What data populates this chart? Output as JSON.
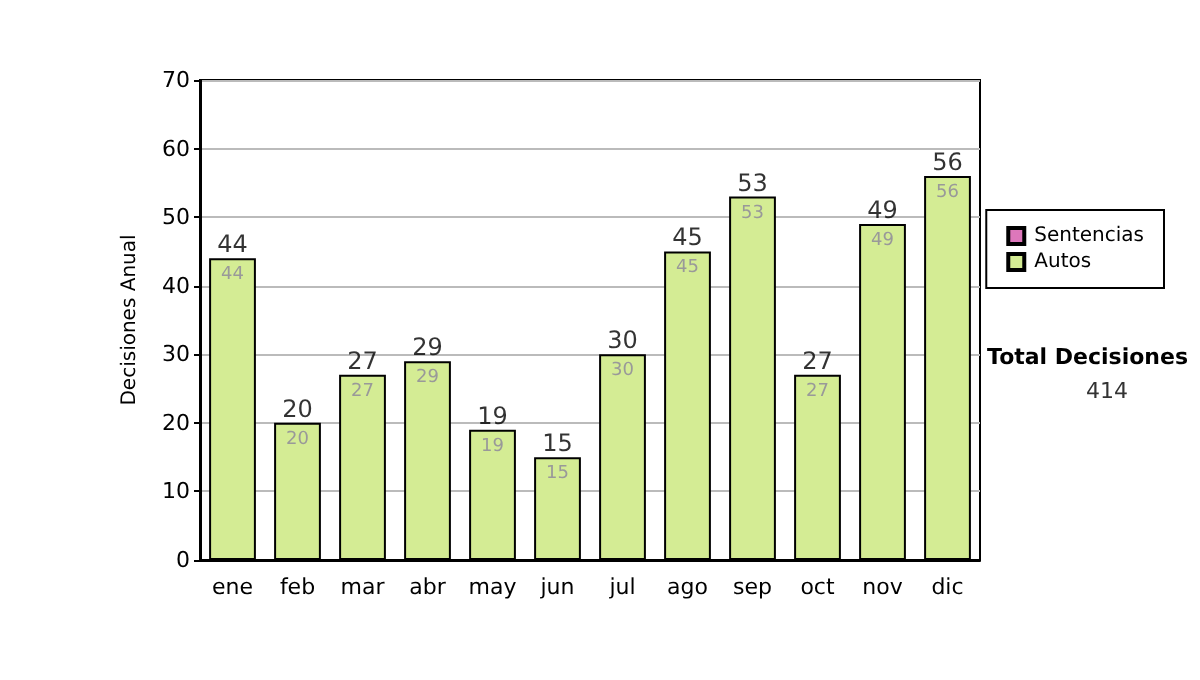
{
  "chart_data": {
    "type": "bar",
    "ylabel": "Decisiones Anual",
    "categories": [
      "ene",
      "feb",
      "mar",
      "abr",
      "may",
      "jun",
      "jul",
      "ago",
      "sep",
      "oct",
      "nov",
      "dic"
    ],
    "series": [
      {
        "name": "Sentencias",
        "color": "#dd77bb",
        "values": [
          0,
          0,
          0,
          0,
          0,
          0,
          0,
          0,
          0,
          0,
          0,
          0
        ]
      },
      {
        "name": "Autos",
        "color": "#d4ec94",
        "values": [
          44,
          20,
          27,
          29,
          19,
          15,
          30,
          45,
          53,
          27,
          49,
          56
        ],
        "value_labels": [
          "44",
          "20",
          "27",
          "29",
          "19",
          "15",
          "30",
          "45",
          "53",
          "27",
          "49",
          "56"
        ]
      }
    ],
    "stacked": true,
    "totals": [
      "44",
      "20",
      "27",
      "29",
      "19",
      "15",
      "30",
      "45",
      "53",
      "27",
      "49",
      "56"
    ],
    "ylim": [
      0,
      70
    ],
    "yticks": [
      0,
      10,
      20,
      30,
      40,
      50,
      60,
      70
    ],
    "grid": "y",
    "legend": "right",
    "annotations": [
      "Total Decisiones",
      "414"
    ]
  }
}
